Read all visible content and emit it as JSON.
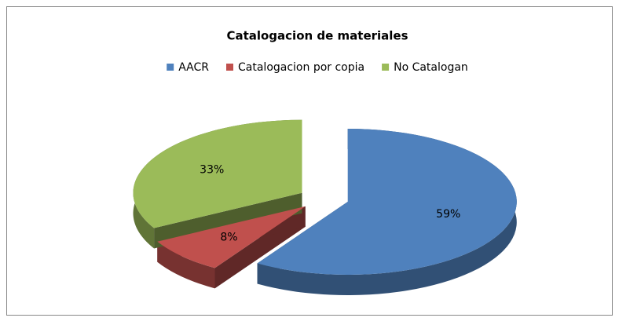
{
  "chart_data": {
    "type": "pie3d",
    "title": "Catalogacion de materiales",
    "categories": [
      "AACR",
      "Catalogacion por copia",
      "No Catalogan"
    ],
    "values": [
      59,
      8,
      33
    ],
    "value_labels": [
      "59%",
      "8%",
      "33%"
    ],
    "colors": [
      "#4f81bd",
      "#c0504d",
      "#9bbb59"
    ],
    "legend": "top"
  }
}
